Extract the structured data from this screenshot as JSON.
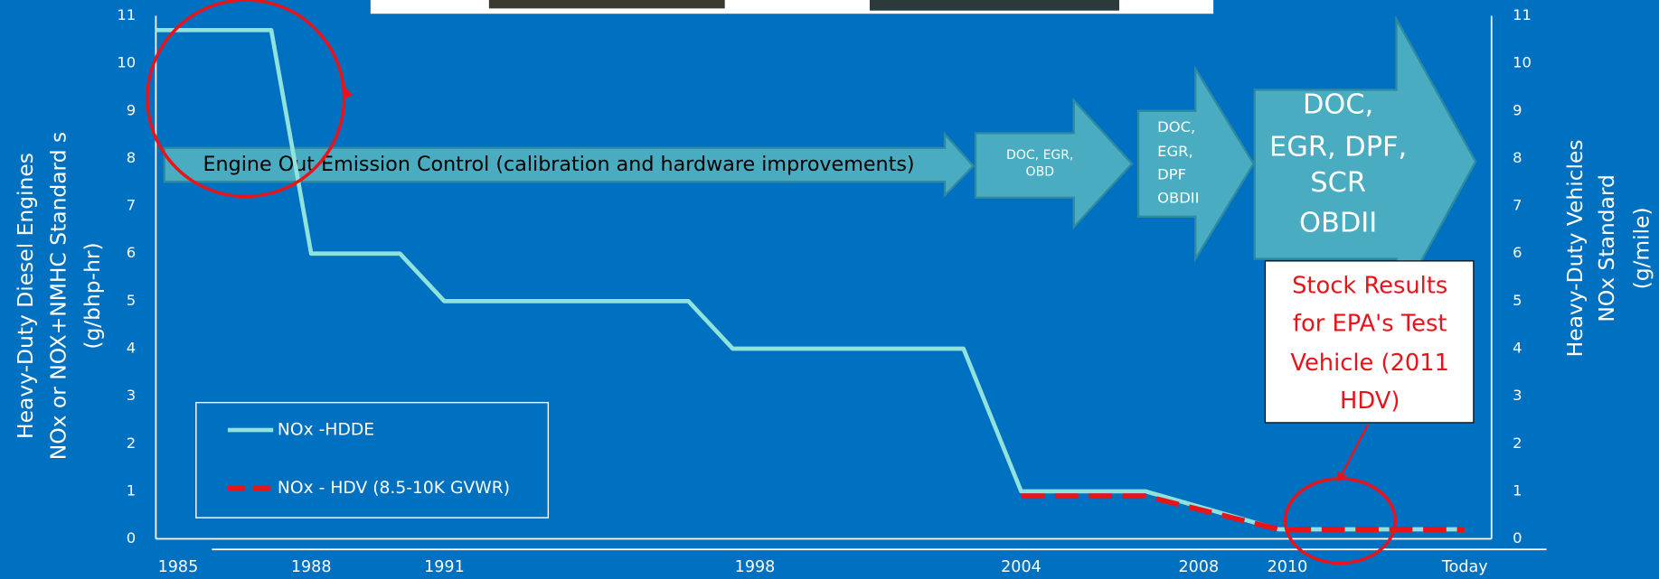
{
  "chart_data": {
    "type": "line",
    "y_label": [
      "Heavy-Duty Diesel Engines",
      "NOx  or  NOX+NMHC Standard s",
      "(g/bhp-hr)"
    ],
    "y2_label": [
      "Heavy-Duty Vehicles",
      "NOx Standard",
      "(g/mile)"
    ],
    "xlim": [
      1984.5,
      2014.6
    ],
    "xticks": [
      1985,
      1988,
      1991,
      1998,
      2004,
      2008,
      2010,
      {
        "value": 2014,
        "label": "Today"
      }
    ],
    "ylim": [
      0,
      11
    ],
    "yticks": [
      0,
      1,
      2,
      3,
      4,
      5,
      6,
      7,
      8,
      9,
      10,
      11
    ],
    "y2lim": [
      0,
      11
    ],
    "y2ticks": [
      0,
      1,
      2,
      3,
      4,
      5,
      6,
      7,
      8,
      9,
      10,
      11
    ],
    "grid": false,
    "legend": "lower left",
    "series": [
      {
        "name": "NOx -HDDE",
        "color": "#8fe3dc",
        "x": [
          1984.5,
          1987.1,
          1988,
          1990,
          1991,
          1996.5,
          1997.5,
          2002.7,
          2004,
          2006.8,
          2009.8,
          2014
        ],
        "values": [
          10.7,
          10.7,
          6.0,
          6.0,
          5.0,
          5.0,
          4.0,
          4.0,
          1.0,
          1.0,
          0.2,
          0.2
        ]
      },
      {
        "name": "NOx - HDV (8.5-10K GVWR)",
        "color": "#e8141c",
        "axis": "y2",
        "dashed": true,
        "x": [
          2004,
          2006.8,
          2009.8,
          2014
        ],
        "values": [
          0.9,
          0.9,
          0.2,
          0.2
        ]
      }
    ],
    "annotations": {
      "engine_out": "Engine Out Emission Control (calibration and hardware improvements)",
      "stage2": [
        "DOC, EGR,",
        "OBD"
      ],
      "stage3": [
        "DOC,",
        "EGR,",
        "DPF",
        "OBDII"
      ],
      "stage4": [
        "DOC,",
        "EGR, DPF,",
        "SCR",
        "OBDII"
      ],
      "callout": [
        "Stock Results",
        "for EPA's Test",
        "Vehicle (2011",
        "HDV)"
      ]
    }
  }
}
